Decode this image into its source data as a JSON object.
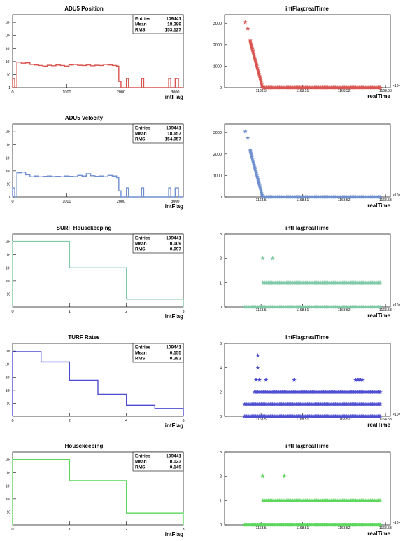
{
  "chart_data": [
    {
      "type": "histogram",
      "title": "ADU5 Position",
      "xlabel": "intFlag",
      "color": "#d9534f",
      "log_y": true,
      "xlim": [
        0,
        3150
      ],
      "x_ticks": [
        "0",
        "1000",
        "2000",
        "3000"
      ],
      "y_ticks": [
        "1",
        "10",
        "10²",
        "10³",
        "10⁴",
        "10⁵"
      ],
      "stats": {
        "entries_label": "Entries",
        "entries": "109441",
        "mean_label": "Mean",
        "mean": "18.389",
        "rms_label": "RMS",
        "rms": "153.127"
      },
      "bins": [
        [
          0,
          40,
          5
        ],
        [
          40,
          80,
          1
        ],
        [
          80,
          160,
          90
        ],
        [
          160,
          240,
          75
        ],
        [
          240,
          320,
          80
        ],
        [
          320,
          400,
          60
        ],
        [
          400,
          480,
          55
        ],
        [
          480,
          560,
          50
        ],
        [
          560,
          640,
          45
        ],
        [
          640,
          720,
          52
        ],
        [
          720,
          800,
          48
        ],
        [
          800,
          880,
          55
        ],
        [
          880,
          960,
          50
        ],
        [
          960,
          1040,
          45
        ],
        [
          1040,
          1120,
          55
        ],
        [
          1120,
          1200,
          60
        ],
        [
          1200,
          1280,
          52
        ],
        [
          1280,
          1360,
          50
        ],
        [
          1360,
          1440,
          56
        ],
        [
          1440,
          1520,
          48
        ],
        [
          1520,
          1600,
          52
        ],
        [
          1600,
          1680,
          50
        ],
        [
          1680,
          1760,
          60
        ],
        [
          1760,
          1840,
          55
        ],
        [
          1840,
          1920,
          50
        ],
        [
          1920,
          1960,
          45
        ],
        [
          1960,
          2000,
          3
        ],
        [
          2000,
          2100,
          1
        ],
        [
          2100,
          2140,
          5
        ],
        [
          2140,
          2380,
          1
        ],
        [
          2380,
          2420,
          5
        ],
        [
          2420,
          2880,
          1
        ],
        [
          2880,
          2920,
          5
        ],
        [
          2920,
          3000,
          1
        ],
        [
          3000,
          3060,
          5
        ],
        [
          3060,
          3150,
          1
        ]
      ]
    },
    {
      "type": "scatter",
      "title": "intFlag:realTime",
      "xlabel": "realTime",
      "color": "#d9534f",
      "ylim": [
        0,
        3400
      ],
      "y_ticks": [
        0,
        1000,
        2000,
        3000
      ],
      "x_ticks": [
        "1168.5",
        "1168.51",
        "1168.52",
        "1168.53"
      ],
      "exponent": "×10⁶",
      "x_range": [
        0.02,
        0.98
      ],
      "star_points": [
        [
          0.125,
          3050
        ],
        [
          0.14,
          2750
        ],
        [
          0.155,
          2200
        ],
        [
          0.16,
          2000
        ]
      ],
      "segments": [
        [
          [
            0.155,
            2150
          ],
          [
            0.23,
            0
          ]
        ],
        [
          [
            0.23,
            0
          ],
          [
            0.94,
            0
          ]
        ]
      ]
    },
    {
      "type": "histogram",
      "title": "ADU5 Velocity",
      "xlabel": "intFlag",
      "color": "#6f8fcf",
      "log_y": true,
      "xlim": [
        0,
        3150
      ],
      "x_ticks": [
        "0",
        "1000",
        "2000",
        "3000"
      ],
      "y_ticks": [
        "1",
        "10",
        "10²",
        "10³",
        "10⁴",
        "10⁵"
      ],
      "stats": {
        "entries_label": "Entries",
        "entries": "109441",
        "mean_label": "Mean",
        "mean": "18.657",
        "rms_label": "RMS",
        "rms": "154.057"
      },
      "bins": [
        [
          0,
          40,
          5
        ],
        [
          40,
          80,
          1
        ],
        [
          80,
          160,
          70
        ],
        [
          160,
          240,
          80
        ],
        [
          240,
          320,
          50
        ],
        [
          320,
          400,
          35
        ],
        [
          400,
          480,
          40
        ],
        [
          480,
          560,
          35
        ],
        [
          560,
          640,
          38
        ],
        [
          640,
          720,
          40
        ],
        [
          720,
          800,
          36
        ],
        [
          800,
          880,
          38
        ],
        [
          880,
          960,
          35
        ],
        [
          960,
          1040,
          40
        ],
        [
          1040,
          1120,
          38
        ],
        [
          1120,
          1200,
          36
        ],
        [
          1200,
          1280,
          45
        ],
        [
          1280,
          1360,
          40
        ],
        [
          1360,
          1440,
          60
        ],
        [
          1440,
          1520,
          42
        ],
        [
          1520,
          1600,
          38
        ],
        [
          1600,
          1680,
          40
        ],
        [
          1680,
          1760,
          35
        ],
        [
          1760,
          1840,
          45
        ],
        [
          1840,
          1920,
          40
        ],
        [
          1920,
          1960,
          30
        ],
        [
          1960,
          2000,
          3
        ],
        [
          2000,
          2100,
          1
        ],
        [
          2100,
          2140,
          5
        ],
        [
          2140,
          2380,
          1
        ],
        [
          2380,
          2420,
          5
        ],
        [
          2420,
          2880,
          1
        ],
        [
          2880,
          2920,
          5
        ],
        [
          2920,
          3000,
          1
        ],
        [
          3000,
          3060,
          5
        ],
        [
          3060,
          3150,
          1
        ]
      ]
    },
    {
      "type": "scatter",
      "title": "",
      "xlabel": "realTime",
      "color": "#6f8fcf",
      "ylim": [
        0,
        3400
      ],
      "y_ticks": [
        0,
        1000,
        2000,
        3000
      ],
      "x_ticks": [
        "1168.5",
        "1168.51",
        "1168.52",
        "1168.53"
      ],
      "exponent": "×10⁶",
      "x_range": [
        0.02,
        0.98
      ],
      "star_points": [
        [
          0.125,
          3050
        ],
        [
          0.14,
          2750
        ],
        [
          0.155,
          2200
        ],
        [
          0.16,
          2000
        ]
      ],
      "segments": [
        [
          [
            0.155,
            2150
          ],
          [
            0.23,
            0
          ]
        ],
        [
          [
            0.23,
            0
          ],
          [
            0.94,
            0
          ]
        ]
      ]
    },
    {
      "type": "histogram",
      "title": "SURF Housekeeping",
      "xlabel": "intFlag",
      "color": "#7fc9a6",
      "log_y": true,
      "xlim": [
        0,
        3
      ],
      "x_ticks": [
        "0",
        "1",
        "2",
        "3"
      ],
      "y_ticks": [
        "10",
        "10²",
        "10³",
        "10⁴",
        "10⁵"
      ],
      "stats": {
        "entries_label": "Entries",
        "entries": "109441",
        "mean_label": "Mean",
        "mean": "0.009",
        "rms_label": "RMS",
        "rms": "0.097"
      },
      "bins": [
        [
          0,
          1,
          108000
        ],
        [
          1,
          2,
          1000
        ],
        [
          2,
          3,
          4
        ]
      ]
    },
    {
      "type": "scatter",
      "title": "intFlag:realTime",
      "xlabel": "realTime",
      "color": "#7fc9a6",
      "ylim": [
        0,
        3
      ],
      "y_ticks": [
        0,
        1,
        2,
        3
      ],
      "x_ticks": [
        "1168.5",
        "1168.51",
        "1168.52",
        "1168.53"
      ],
      "exponent": "×10⁶",
      "x_range": [
        0.02,
        0.98
      ],
      "star_points": [
        [
          0.23,
          2
        ],
        [
          0.29,
          2
        ]
      ],
      "segments": [
        [
          [
            0.23,
            1
          ],
          [
            0.94,
            1
          ]
        ],
        [
          [
            0.12,
            0
          ],
          [
            0.94,
            0
          ]
        ]
      ]
    },
    {
      "type": "histogram",
      "title": "TURF Rates",
      "xlabel": "intFlag",
      "color": "#4d4dd1",
      "log_y": true,
      "xlim": [
        0,
        6
      ],
      "x_ticks": [
        "0",
        "2",
        "4",
        "6"
      ],
      "y_ticks": [
        "10",
        "10²",
        "10³",
        "10⁴",
        "10⁵"
      ],
      "stats": {
        "entries_label": "Entries",
        "entries": "109441",
        "mean_label": "Mean",
        "mean": "0.155",
        "rms_label": "RMS",
        "rms": "0.383"
      },
      "bins": [
        [
          0,
          1,
          90000
        ],
        [
          1,
          2,
          15000
        ],
        [
          2,
          3,
          600
        ],
        [
          3,
          4,
          50
        ],
        [
          4,
          5,
          7
        ],
        [
          5,
          6,
          4
        ]
      ]
    },
    {
      "type": "scatter",
      "title": "intFlag:realTime",
      "xlabel": "realTime",
      "color": "#4d4dd1",
      "ylim": [
        0,
        6
      ],
      "y_ticks": [
        0,
        2,
        4,
        6
      ],
      "x_ticks": [
        "1168.5",
        "1168.51",
        "1168.52",
        "1168.53"
      ],
      "exponent": "×10⁶",
      "x_range": [
        0.02,
        0.98
      ],
      "star_points": [
        [
          0.2,
          5
        ],
        [
          0.2,
          4
        ],
        [
          0.19,
          3
        ],
        [
          0.21,
          3
        ],
        [
          0.25,
          3
        ],
        [
          0.42,
          3
        ],
        [
          0.79,
          3
        ],
        [
          0.8,
          3
        ],
        [
          0.81,
          3
        ],
        [
          0.82,
          3
        ],
        [
          0.83,
          3
        ]
      ],
      "segments": [
        [
          [
            0.18,
            2
          ],
          [
            0.94,
            2
          ]
        ],
        [
          [
            0.12,
            1
          ],
          [
            0.94,
            1
          ]
        ],
        [
          [
            0.12,
            0
          ],
          [
            0.94,
            0
          ]
        ]
      ]
    },
    {
      "type": "histogram",
      "title": "Housekeeping",
      "xlabel": "intFlag",
      "color": "#5cd65c",
      "log_y": true,
      "xlim": [
        0,
        3
      ],
      "x_ticks": [
        "0",
        "1",
        "2",
        "3"
      ],
      "y_ticks": [
        "10",
        "10²",
        "10³",
        "10⁴",
        "10⁵"
      ],
      "stats": {
        "entries_label": "Entries",
        "entries": "109441",
        "mean_label": "Mean",
        "mean": "0.023",
        "rms_label": "RMS",
        "rms": "0.149"
      },
      "bins": [
        [
          0,
          1,
          105000
        ],
        [
          1,
          2,
          2500
        ],
        [
          2,
          3,
          8
        ]
      ]
    },
    {
      "type": "scatter",
      "title": "intFlag:realTime",
      "xlabel": "realTime",
      "color": "#5cd65c",
      "ylim": [
        0,
        3
      ],
      "y_ticks": [
        0,
        1,
        2,
        3
      ],
      "x_ticks": [
        "1168.5",
        "1168.51",
        "1168.52",
        "1168.53"
      ],
      "exponent": "×10⁶",
      "x_range": [
        0.02,
        0.98
      ],
      "star_points": [
        [
          0.23,
          2
        ],
        [
          0.36,
          2
        ]
      ],
      "segments": [
        [
          [
            0.23,
            1
          ],
          [
            0.94,
            1
          ]
        ],
        [
          [
            0.12,
            0
          ],
          [
            0.94,
            0
          ]
        ]
      ]
    }
  ]
}
